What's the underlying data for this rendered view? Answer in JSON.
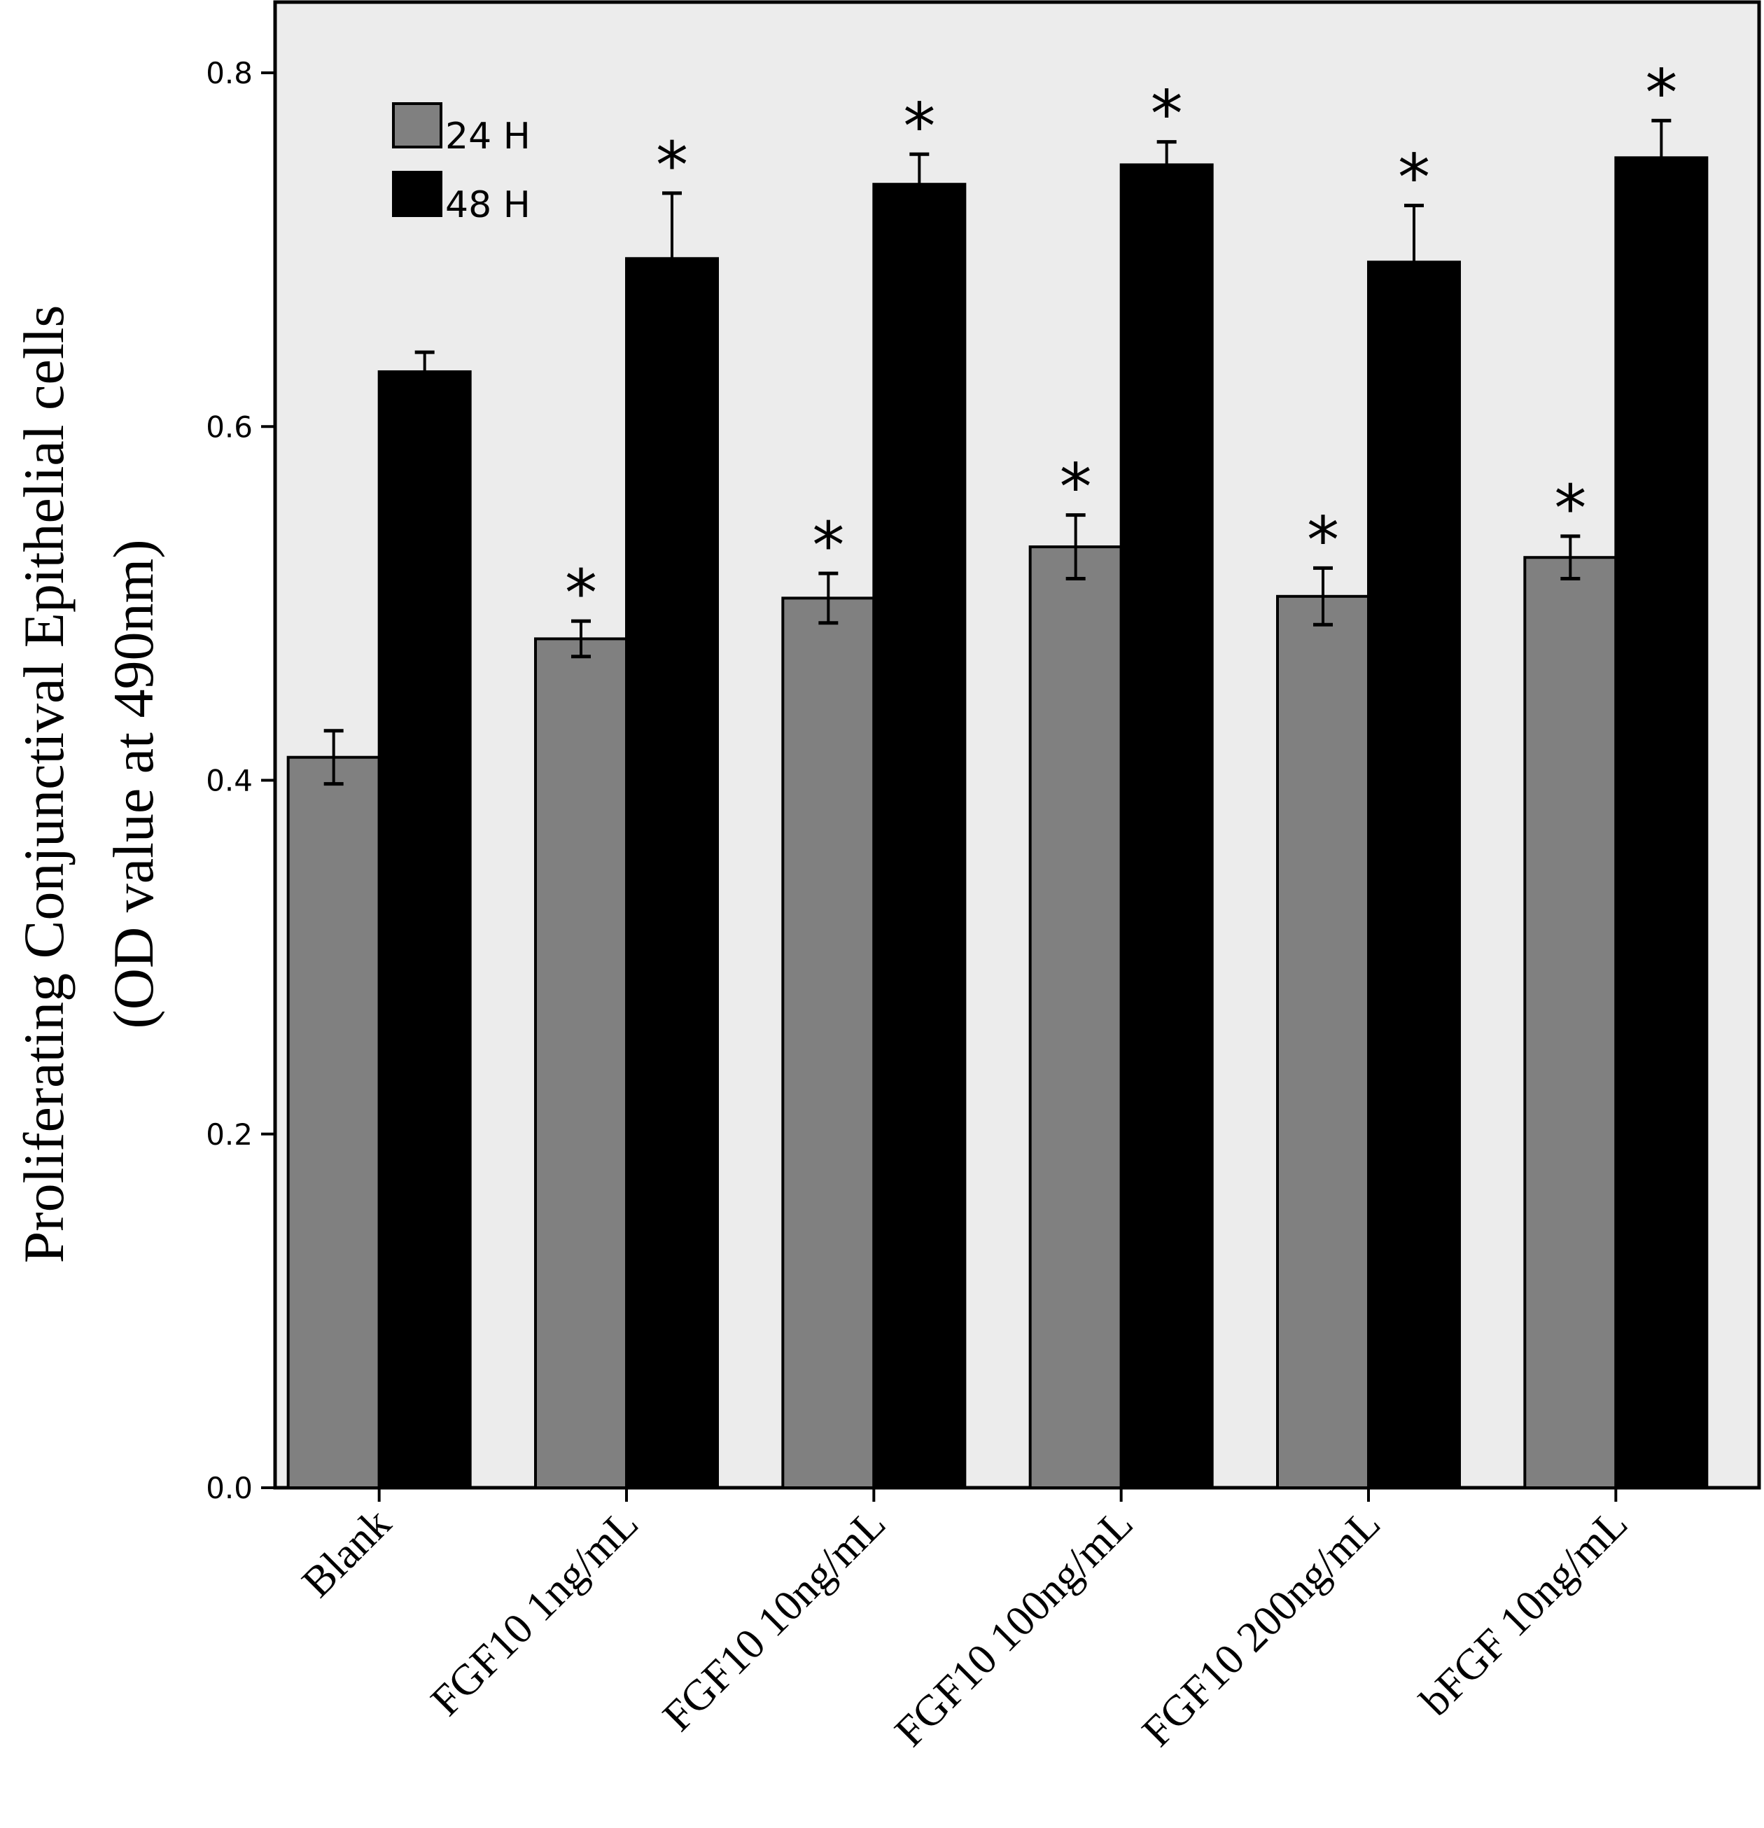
{
  "chart_data": {
    "type": "bar",
    "title": "",
    "xlabel": "",
    "ylabel": "Proliferating Conjunctival Epithelial cells",
    "ylabel_line2": "(OD value at 490nm)",
    "categories": [
      "Blank",
      "FGF10  1ng/mL",
      "FGF10  10ng/mL",
      "FGF10  100ng/mL",
      "FGF10  200ng/mL",
      "bFGF  10ng/mL"
    ],
    "series": [
      {
        "name": "24 H",
        "color": "#808080",
        "values": [
          0.413,
          0.48,
          0.503,
          0.532,
          0.504,
          0.526
        ],
        "error": [
          0.015,
          0.01,
          0.014,
          0.018,
          0.016,
          0.012
        ],
        "significant": [
          false,
          true,
          true,
          true,
          true,
          true
        ]
      },
      {
        "name": "48 H",
        "color": "#000000",
        "values": [
          0.631,
          0.695,
          0.737,
          0.748,
          0.693,
          0.752
        ],
        "error": [
          0.011,
          0.037,
          0.017,
          0.013,
          0.032,
          0.021
        ],
        "significant": [
          false,
          true,
          true,
          true,
          true,
          true
        ]
      }
    ],
    "significance_marker": "*",
    "ylim": [
      0,
      0.84
    ],
    "yticks": [
      "0.0",
      "0.2",
      "0.4",
      "0.6",
      "0.8"
    ],
    "ytick_values": [
      0.0,
      0.2,
      0.4,
      0.6,
      0.8
    ],
    "grid": false,
    "legend_position": "top-left",
    "plot_background": "#ececec"
  }
}
